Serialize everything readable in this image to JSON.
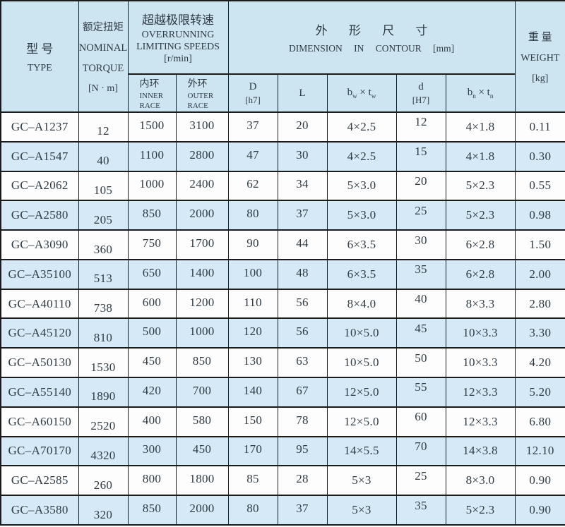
{
  "header": {
    "type": {
      "zh": "型 号",
      "en": "TYPE"
    },
    "torque": {
      "zh": "额定扭矩",
      "line2": "NOMINAL",
      "line3": "TORQUE",
      "unit": "[N · m]"
    },
    "speeds": {
      "zh": "超越极限转速",
      "line2": "OVERRUNNING",
      "line3": "LIMITING SPEEDS",
      "unit": "[r/min]"
    },
    "inner": {
      "zh": "内环",
      "line2": "INNER",
      "line3": "RACE"
    },
    "outer": {
      "zh": "外环",
      "line2": "OUTER",
      "line3": "RACE"
    },
    "dim": {
      "zh": "外 形 尺 寸",
      "en": "DIMENSION IN CONTOUR",
      "unit": "[mm]"
    },
    "col_D": {
      "main": "D",
      "unit": "[h7]"
    },
    "col_L": {
      "main": "L"
    },
    "col_bw": {
      "base1": "b",
      "sub1": "w",
      "times": "×",
      "base2": "t",
      "sub2": "w"
    },
    "col_d": {
      "main": "d",
      "unit": "[H7]"
    },
    "col_bn": {
      "base1": "b",
      "sub1": "n",
      "times": "×",
      "base2": "t",
      "sub2": "n"
    },
    "weight": {
      "zh": "重 量",
      "en": "WEIGHT",
      "unit": "[kg]"
    }
  },
  "columns": [
    "type",
    "torque",
    "inner_race",
    "outer_race",
    "D",
    "L",
    "bw_tw",
    "d",
    "bn_tn",
    "weight"
  ],
  "rows": [
    [
      "GC–A1237",
      "12",
      "1500",
      "3100",
      "37",
      "20",
      "4×2.5",
      "12",
      "4×1.8",
      "0.11"
    ],
    [
      "GC–A1547",
      "40",
      "1100",
      "2800",
      "47",
      "30",
      "4×2.5",
      "15",
      "4×1.8",
      "0.30"
    ],
    [
      "GC–A2062",
      "105",
      "1000",
      "2400",
      "62",
      "34",
      "5×3.0",
      "20",
      "5×2.3",
      "0.55"
    ],
    [
      "GC–A2580",
      "205",
      "850",
      "2000",
      "80",
      "37",
      "5×3.0",
      "25",
      "5×2.3",
      "0.98"
    ],
    [
      "GC–A3090",
      "360",
      "750",
      "1700",
      "90",
      "44",
      "6×3.5",
      "30",
      "6×2.8",
      "1.50"
    ],
    [
      "GC–A35100",
      "513",
      "650",
      "1400",
      "100",
      "48",
      "6×3.5",
      "35",
      "6×2.8",
      "2.00"
    ],
    [
      "GC–A40110",
      "738",
      "600",
      "1200",
      "110",
      "56",
      "8×4.0",
      "40",
      "8×3.3",
      "2.80"
    ],
    [
      "GC–A45120",
      "810",
      "500",
      "1000",
      "120",
      "56",
      "10×5.0",
      "45",
      "10×3.3",
      "3.30"
    ],
    [
      "GC–A50130",
      "1530",
      "450",
      "850",
      "130",
      "63",
      "10×5.0",
      "50",
      "10×3.3",
      "4.20"
    ],
    [
      "GC–A55140",
      "1890",
      "420",
      "700",
      "140",
      "67",
      "12×5.0",
      "55",
      "12×3.3",
      "5.20"
    ],
    [
      "GC–A60150",
      "2520",
      "400",
      "580",
      "150",
      "78",
      "12×5.0",
      "60",
      "12×3.3",
      "6.80"
    ],
    [
      "GC–A70170",
      "4320",
      "300",
      "450",
      "170",
      "95",
      "14×5.5",
      "70",
      "14×3.8",
      "12.10"
    ],
    [
      "GC–A2585",
      "260",
      "800",
      "1800",
      "85",
      "28",
      "5×3",
      "25",
      "8×3.0",
      "0.90"
    ],
    [
      "GC–A3580",
      "320",
      "850",
      "2000",
      "80",
      "37",
      "5×3",
      "35",
      "5×2.3",
      "0.90"
    ]
  ],
  "colors": {
    "header_bg": "#cde4f1",
    "row_bg": "#fdfdfd",
    "row_alt_bg": "#d5eaf6",
    "border": "#1b1b1b",
    "text": "#2e3b44"
  }
}
